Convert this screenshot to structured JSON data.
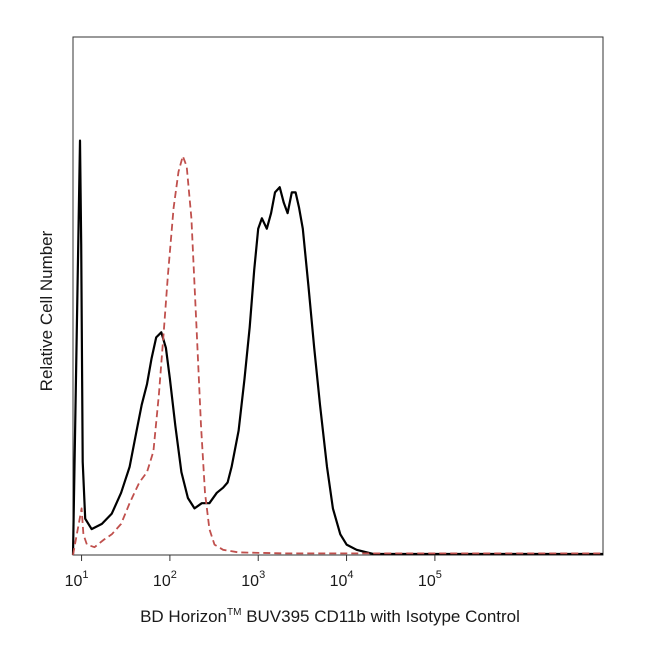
{
  "chart_data": {
    "type": "line",
    "xlabel_parts": [
      "BD Horizon",
      "TM",
      " BUV395 CD11b with Isotype Control"
    ],
    "ylabel": "Relative Cell Number",
    "x_scale": "log",
    "xlim": [
      8,
      8000000
    ],
    "ylim": [
      0,
      100
    ],
    "x_ticks": [
      {
        "base": "10",
        "exp": "1",
        "value": 10
      },
      {
        "base": "10",
        "exp": "2",
        "value": 100
      },
      {
        "base": "10",
        "exp": "3",
        "value": 1000
      },
      {
        "base": "10",
        "exp": "4",
        "value": 10000
      },
      {
        "base": "10",
        "exp": "5",
        "value": 100000
      }
    ],
    "series": [
      {
        "color": "#000000",
        "dash": "solid",
        "points": [
          [
            8,
            0
          ],
          [
            9.6,
            80
          ],
          [
            9.9,
            60
          ],
          [
            10.3,
            18
          ],
          [
            11,
            7
          ],
          [
            13,
            5
          ],
          [
            17,
            6
          ],
          [
            22,
            8
          ],
          [
            28,
            12
          ],
          [
            35,
            17
          ],
          [
            42,
            24
          ],
          [
            48,
            29
          ],
          [
            55,
            33
          ],
          [
            62,
            38
          ],
          [
            70,
            42
          ],
          [
            80,
            43
          ],
          [
            90,
            40
          ],
          [
            100,
            34
          ],
          [
            115,
            25
          ],
          [
            135,
            16
          ],
          [
            160,
            11
          ],
          [
            190,
            9
          ],
          [
            230,
            10
          ],
          [
            280,
            10
          ],
          [
            340,
            12
          ],
          [
            400,
            13
          ],
          [
            450,
            14
          ],
          [
            500,
            17
          ],
          [
            600,
            24
          ],
          [
            700,
            34
          ],
          [
            800,
            44
          ],
          [
            900,
            55
          ],
          [
            1000,
            63
          ],
          [
            1100,
            65
          ],
          [
            1250,
            63
          ],
          [
            1400,
            66
          ],
          [
            1550,
            70
          ],
          [
            1750,
            71
          ],
          [
            1950,
            68
          ],
          [
            2150,
            66
          ],
          [
            2400,
            70
          ],
          [
            2650,
            70
          ],
          [
            2900,
            67
          ],
          [
            3200,
            63
          ],
          [
            3700,
            52
          ],
          [
            4300,
            40
          ],
          [
            5000,
            29
          ],
          [
            6000,
            17
          ],
          [
            7000,
            9
          ],
          [
            8500,
            4
          ],
          [
            10000,
            2
          ],
          [
            13000,
            1
          ],
          [
            20000,
            0.2
          ],
          [
            100000,
            0.2
          ],
          [
            8000000,
            0.2
          ]
        ]
      },
      {
        "color": "#c0504d",
        "dash": "dashed",
        "points": [
          [
            8,
            0
          ],
          [
            10,
            9
          ],
          [
            10.5,
            4
          ],
          [
            11.5,
            2
          ],
          [
            14,
            1.5
          ],
          [
            18,
            3
          ],
          [
            22,
            4
          ],
          [
            28,
            6
          ],
          [
            35,
            10
          ],
          [
            45,
            14
          ],
          [
            55,
            16
          ],
          [
            65,
            20
          ],
          [
            75,
            31
          ],
          [
            85,
            43
          ],
          [
            95,
            54
          ],
          [
            110,
            67
          ],
          [
            125,
            74
          ],
          [
            140,
            77
          ],
          [
            155,
            75
          ],
          [
            175,
            65
          ],
          [
            200,
            44
          ],
          [
            225,
            25
          ],
          [
            250,
            12
          ],
          [
            280,
            5
          ],
          [
            320,
            2
          ],
          [
            400,
            1
          ],
          [
            600,
            0.5
          ],
          [
            2000,
            0.3
          ],
          [
            20000,
            0.3
          ],
          [
            8000000,
            0.3
          ]
        ]
      }
    ]
  }
}
